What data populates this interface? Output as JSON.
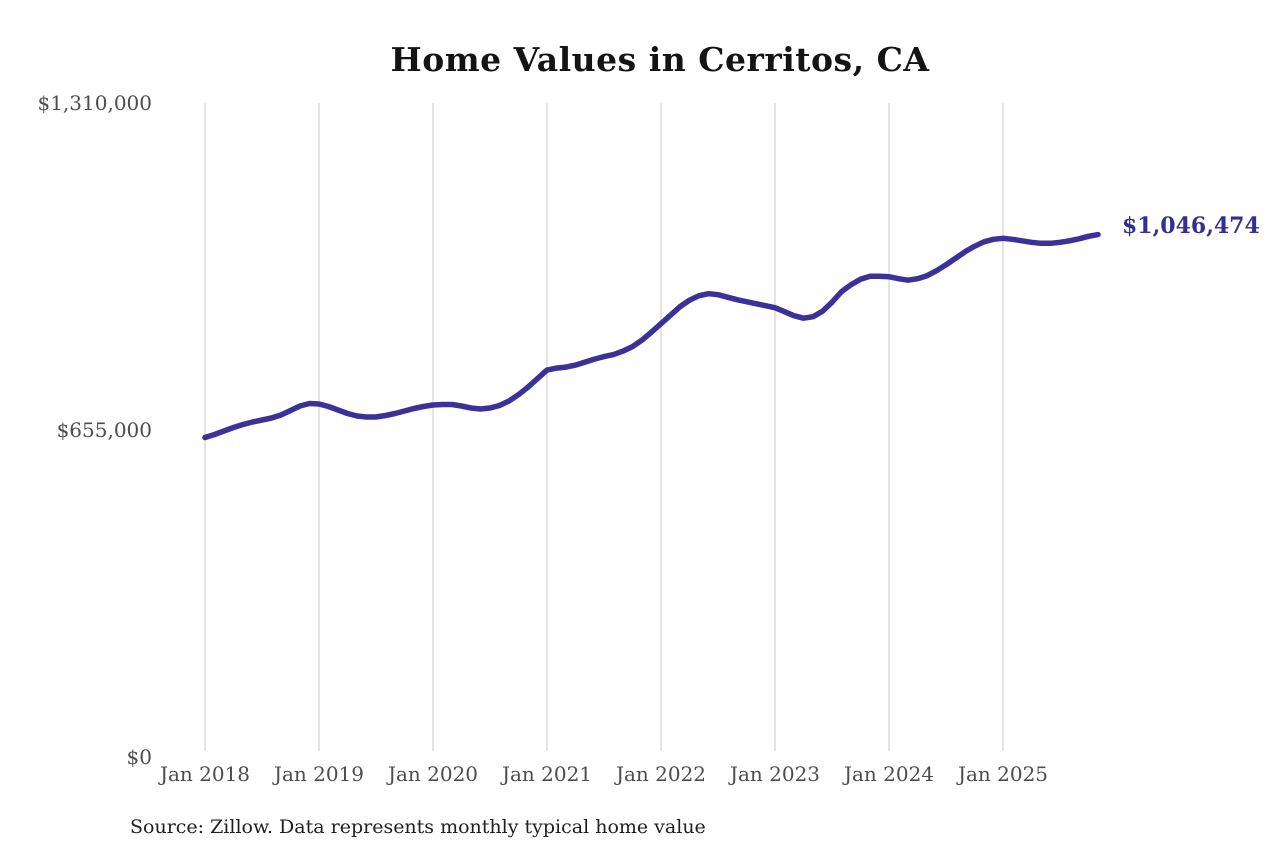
{
  "page": {
    "source_note": "Source: Zillow. Data represents monthly typical home value"
  },
  "colors": {
    "line": "#3a3299",
    "end_label_text": "#33308f",
    "grid": "#c9c9c9",
    "axis_text": "#4d4d4d",
    "title_text": "#141414",
    "source_text": "#1f1f1f",
    "background": "#ffffff"
  },
  "chart_data": {
    "type": "line",
    "title": "Home Values in Cerritos, CA",
    "series_name": "Monthly typical home value",
    "unit": "USD",
    "x_start": "2018-01",
    "x_interval": "monthly",
    "x_tick_labels": [
      "Jan 2018",
      "Jan 2019",
      "Jan 2020",
      "Jan 2021",
      "Jan 2022",
      "Jan 2023",
      "Jan 2024",
      "Jan 2025"
    ],
    "y_tick_labels": [
      "$0",
      "$655,000",
      "$1,310,000"
    ],
    "y_ticks": [
      0,
      655000,
      1310000
    ],
    "ylim": [
      0,
      1310000
    ],
    "grid": "vertical-only",
    "legend": "none",
    "end_label": "$1,046,474",
    "last_value": 1046474,
    "values": [
      640000,
      646000,
      653000,
      660000,
      666000,
      671000,
      675000,
      679000,
      685000,
      694000,
      703000,
      708000,
      707000,
      702000,
      695000,
      688000,
      683000,
      681000,
      681000,
      684000,
      688000,
      693000,
      698000,
      702000,
      705000,
      706000,
      706000,
      703000,
      699000,
      697000,
      699000,
      704000,
      713000,
      726000,
      741000,
      758000,
      775000,
      779000,
      781000,
      785000,
      791000,
      797000,
      802000,
      806000,
      813000,
      822000,
      835000,
      851000,
      868000,
      885000,
      902000,
      915000,
      924000,
      928000,
      926000,
      921000,
      916000,
      912000,
      908000,
      904000,
      900000,
      892000,
      884000,
      879000,
      882000,
      893000,
      911000,
      932000,
      946000,
      957000,
      963000,
      963000,
      962000,
      958000,
      955000,
      958000,
      964000,
      974000,
      986000,
      999000,
      1012000,
      1023000,
      1032000,
      1037000,
      1039000,
      1037000,
      1034000,
      1031000,
      1029000,
      1029000,
      1031000,
      1034000,
      1038000,
      1043000,
      1046474
    ]
  }
}
